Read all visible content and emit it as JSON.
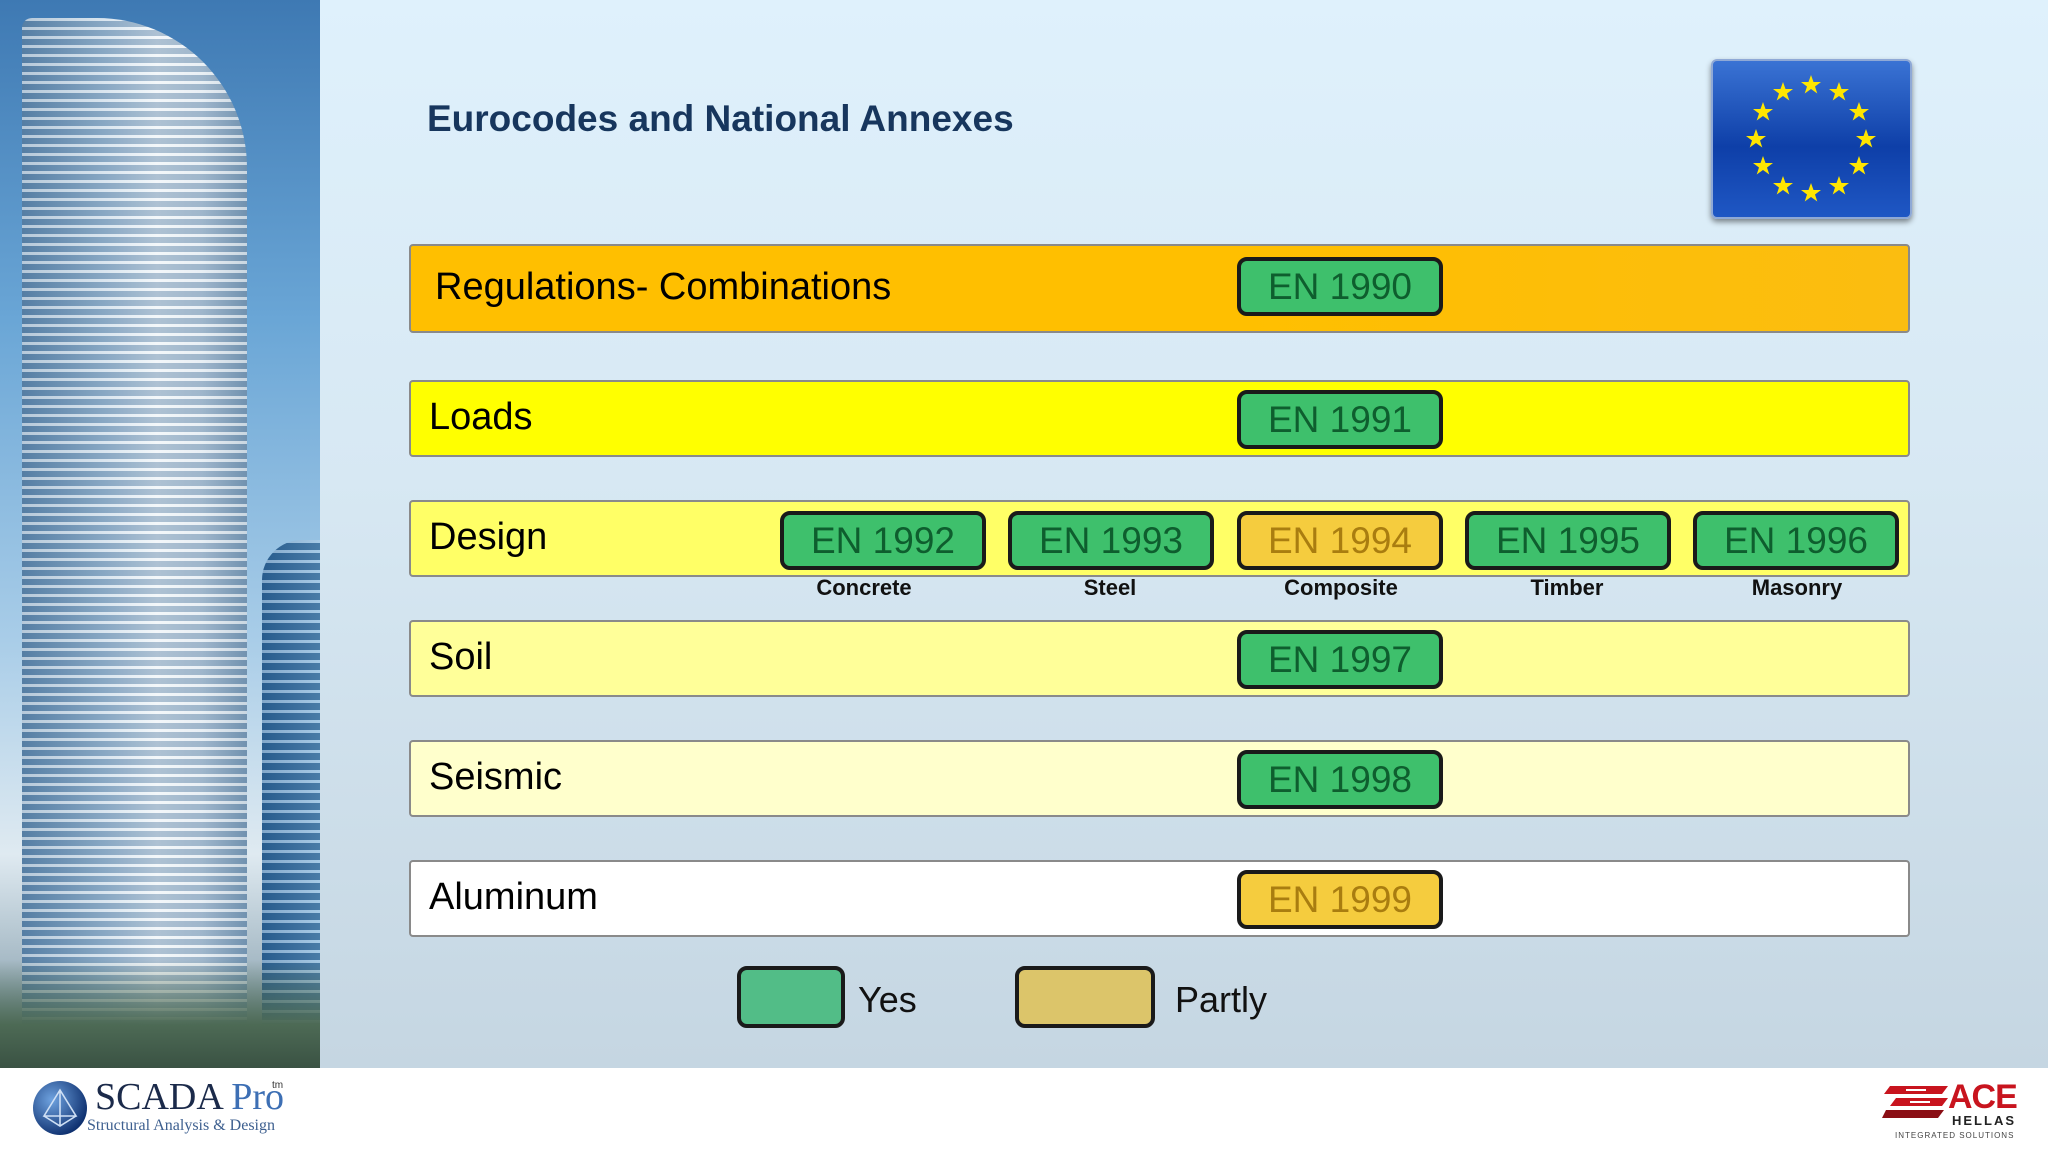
{
  "title": "Eurocodes and National Annexes",
  "rows": [
    {
      "label": "Regulations- Combinations",
      "codes": [
        {
          "code": "EN 1990",
          "status": "yes"
        }
      ]
    },
    {
      "label": "Loads",
      "codes": [
        {
          "code": "EN 1991",
          "status": "yes"
        }
      ]
    },
    {
      "label": "Design",
      "codes": [
        {
          "code": "EN 1992",
          "status": "yes",
          "material": "Concrete"
        },
        {
          "code": "EN 1993",
          "status": "yes",
          "material": "Steel"
        },
        {
          "code": "EN 1994",
          "status": "partly",
          "material": "Composite"
        },
        {
          "code": "EN 1995",
          "status": "yes",
          "material": "Timber"
        },
        {
          "code": "EN 1996",
          "status": "yes",
          "material": "Masonry"
        }
      ]
    },
    {
      "label": "Soil",
      "codes": [
        {
          "code": "EN 1997",
          "status": "yes"
        }
      ]
    },
    {
      "label": "Seismic",
      "codes": [
        {
          "code": "EN 1998",
          "status": "yes"
        }
      ]
    },
    {
      "label": "Aluminum",
      "codes": [
        {
          "code": "EN 1999",
          "status": "partly"
        }
      ]
    }
  ],
  "legend": {
    "yes": "Yes",
    "partly": "Partly"
  },
  "colors": {
    "yes": "#3ec06c",
    "partly": "#f5cc3e",
    "row_regulations": "#ffbf00",
    "row_loads": "#ffff00",
    "row_design": "#ffff66",
    "row_soil": "#ffff99",
    "row_seismic": "#ffffcc",
    "row_aluminum": "#ffffff"
  },
  "footer": {
    "scada_name": "SCADA",
    "scada_pro": "Pro",
    "scada_tm": "tm",
    "scada_tagline": "Structural Analysis & Design",
    "ace_name": "ACE",
    "ace_sub": "HELLAS",
    "ace_tagline": "INTEGRATED SOLUTIONS"
  },
  "icons": {
    "flag": "eu-flag-icon",
    "scada": "scada-globe-icon",
    "ace": "ace-emblem-icon"
  }
}
